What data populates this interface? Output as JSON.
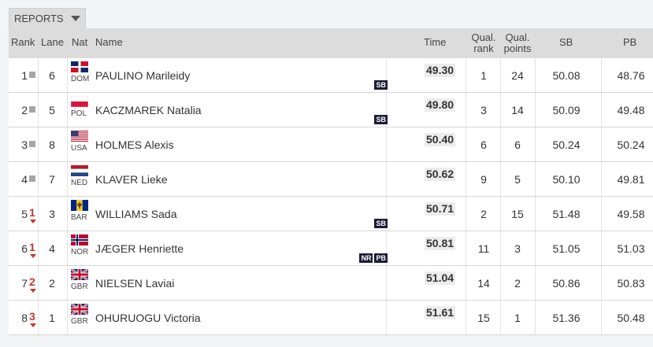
{
  "reports": {
    "label": "REPORTS"
  },
  "headers": {
    "rank": "Rank",
    "lane": "Lane",
    "nat": "Nat",
    "name": "Name",
    "time": "Time",
    "qual_rank": [
      "Qual.",
      "rank"
    ],
    "qual_points": [
      "Qual.",
      "points"
    ],
    "sb": "SB",
    "pb": "PB"
  },
  "rows": [
    {
      "rank": "1",
      "change": "",
      "lane": "6",
      "nat": "DOM",
      "name": "PAULINO Marileidy",
      "time": "49.30",
      "badges": [
        "SB"
      ],
      "qual_rank": "1",
      "qual_points": "24",
      "sb": "50.08",
      "pb": "48.76"
    },
    {
      "rank": "2",
      "change": "",
      "lane": "5",
      "nat": "POL",
      "name": "KACZMAREK Natalia",
      "time": "49.80",
      "badges": [
        "SB"
      ],
      "qual_rank": "3",
      "qual_points": "14",
      "sb": "50.09",
      "pb": "49.48"
    },
    {
      "rank": "3",
      "change": "",
      "lane": "8",
      "nat": "USA",
      "name": "HOLMES Alexis",
      "time": "50.40",
      "badges": [],
      "qual_rank": "6",
      "qual_points": "6",
      "sb": "50.24",
      "pb": "50.24"
    },
    {
      "rank": "4",
      "change": "",
      "lane": "7",
      "nat": "NED",
      "name": "KLAVER Lieke",
      "time": "50.62",
      "badges": [],
      "qual_rank": "9",
      "qual_points": "5",
      "sb": "50.10",
      "pb": "49.81"
    },
    {
      "rank": "5",
      "change": "1",
      "lane": "3",
      "nat": "BAR",
      "name": "WILLIAMS Sada",
      "time": "50.71",
      "badges": [
        "SB"
      ],
      "qual_rank": "2",
      "qual_points": "15",
      "sb": "51.48",
      "pb": "49.58"
    },
    {
      "rank": "6",
      "change": "1",
      "lane": "4",
      "nat": "NOR",
      "name": "JÆGER Henriette",
      "time": "50.81",
      "badges": [
        "NR",
        "PB"
      ],
      "qual_rank": "11",
      "qual_points": "3",
      "sb": "51.05",
      "pb": "51.03"
    },
    {
      "rank": "7",
      "change": "2",
      "lane": "2",
      "nat": "GBR",
      "name": "NIELSEN Laviai",
      "time": "51.04",
      "badges": [],
      "qual_rank": "14",
      "qual_points": "2",
      "sb": "50.86",
      "pb": "50.83"
    },
    {
      "rank": "8",
      "change": "3",
      "lane": "1",
      "nat": "GBR",
      "name": "OHURUOGU Victoria",
      "time": "51.61",
      "badges": [],
      "qual_rank": "15",
      "qual_points": "1",
      "sb": "51.36",
      "pb": "50.48"
    }
  ],
  "colors": {
    "header_bg": "#dcdcdc",
    "badge_bg": "#1c1c38",
    "down_arrow": "#c0392b"
  }
}
